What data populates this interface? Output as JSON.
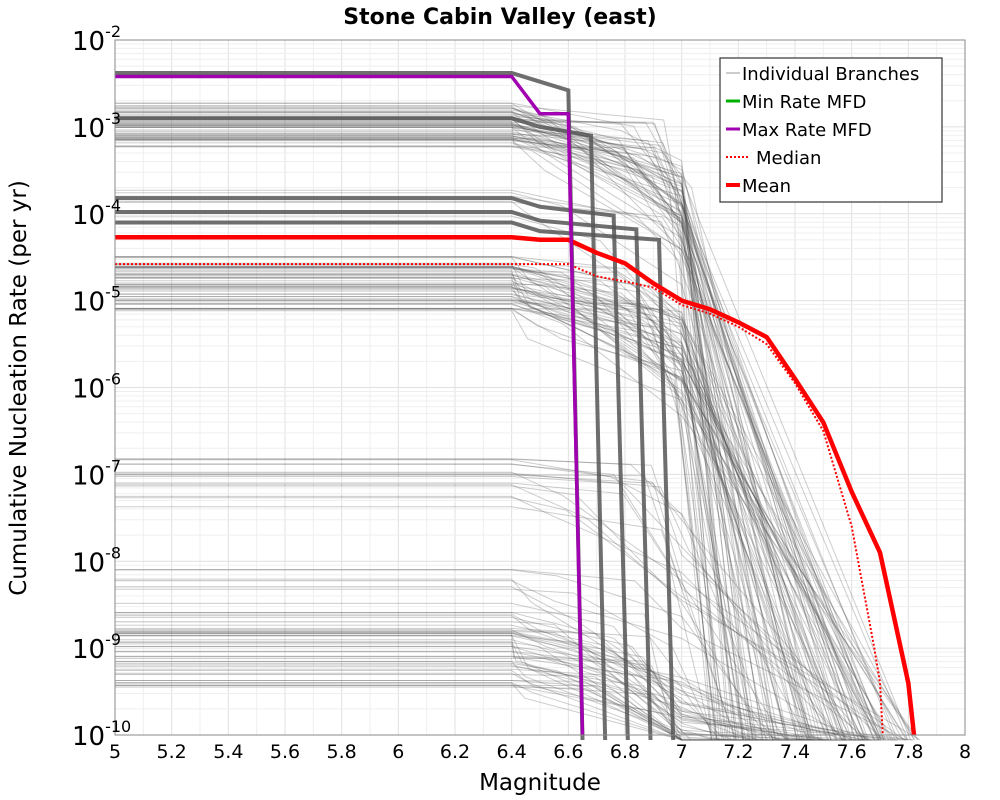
{
  "chart_data": {
    "type": "line",
    "title": "Stone Cabin Valley (east)",
    "xlabel": "Magnitude",
    "ylabel": "Cumulative Nucleation Rate (per yr)",
    "xlim": [
      5,
      8
    ],
    "ylim_log10": [
      -10,
      -2
    ],
    "y_scale": "log",
    "grid": true,
    "legend_position": "top-right",
    "x_ticks": [
      "5",
      "5.2",
      "5.4",
      "5.6",
      "5.8",
      "6",
      "6.2",
      "6.4",
      "6.6",
      "6.8",
      "7",
      "7.2",
      "7.4",
      "7.6",
      "7.8",
      "8"
    ],
    "y_ticks": [
      {
        "base": "10",
        "exp": "-10"
      },
      {
        "base": "10",
        "exp": "-9"
      },
      {
        "base": "10",
        "exp": "-8"
      },
      {
        "base": "10",
        "exp": "-7"
      },
      {
        "base": "10",
        "exp": "-6"
      },
      {
        "base": "10",
        "exp": "-5"
      },
      {
        "base": "10",
        "exp": "-4"
      },
      {
        "base": "10",
        "exp": "-3"
      },
      {
        "base": "10",
        "exp": "-2"
      }
    ],
    "colors": {
      "branches": "#4a4a4a",
      "min": "#00b000",
      "max": "#a000b0",
      "median": "#ff0000",
      "mean": "#ff0000"
    },
    "series": [
      {
        "name": "Mean",
        "x": [
          5.0,
          6.4,
          6.5,
          6.6,
          6.7,
          6.8,
          6.9,
          7.0,
          7.1,
          7.2,
          7.3,
          7.4,
          7.5,
          7.6,
          7.7,
          7.8,
          7.82
        ],
        "log10_y": [
          -4.27,
          -4.27,
          -4.3,
          -4.3,
          -4.45,
          -4.57,
          -4.8,
          -5.0,
          -5.1,
          -5.25,
          -5.42,
          -5.9,
          -6.4,
          -7.2,
          -7.9,
          -9.4,
          -10.0
        ]
      },
      {
        "name": "Median",
        "x": [
          5.0,
          6.6,
          6.7,
          6.8,
          6.9,
          7.0,
          7.1,
          7.2,
          7.3,
          7.4,
          7.5,
          7.6,
          7.68,
          7.7,
          7.71
        ],
        "log10_y": [
          -4.58,
          -4.58,
          -4.72,
          -4.78,
          -4.85,
          -5.05,
          -5.15,
          -5.3,
          -5.5,
          -5.95,
          -6.5,
          -7.6,
          -9.0,
          -9.4,
          -10.0
        ]
      },
      {
        "name": "Max Rate MFD",
        "x": [
          5.0,
          6.4,
          6.5,
          6.6,
          6.65
        ],
        "log10_y": [
          -2.42,
          -2.42,
          -2.85,
          -2.85,
          -10.0
        ]
      },
      {
        "name": "Min Rate MFD",
        "x": [],
        "log10_y": []
      }
    ],
    "legend": [
      "Individual Branches",
      "Min Rate MFD",
      "Max Rate MFD",
      "Median",
      "Mean"
    ],
    "branch_bands_log10": [
      {
        "center": -3.0,
        "spread": 0.28,
        "count": 55
      },
      {
        "center": -4.8,
        "spread": 0.32,
        "count": 55
      },
      {
        "center": -7.1,
        "spread": 0.28,
        "count": 16
      },
      {
        "center": -9.1,
        "spread": 0.35,
        "count": 40
      },
      {
        "center": -8.4,
        "spread": 0.35,
        "count": 14
      },
      {
        "center": -3.9,
        "spread": 0.18,
        "count": 6
      }
    ]
  }
}
